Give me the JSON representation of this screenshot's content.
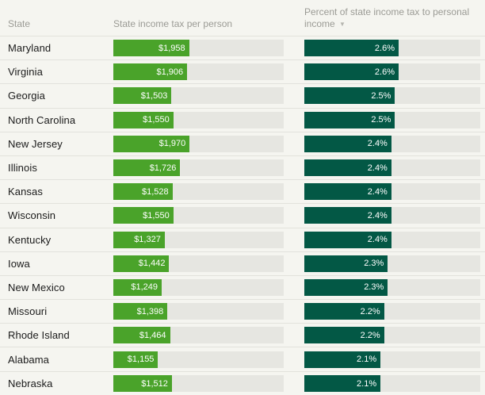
{
  "colors": {
    "background": "#f5f5f0",
    "track": "#e6e6e1",
    "row_divider": "#e2e2dc",
    "header_text": "#9b9b95",
    "state_text": "#1a1a1a",
    "bar_value_text": "#ffffff",
    "tax_bar": "#4aa32a",
    "pct_bar": "#035845"
  },
  "table": {
    "headers": {
      "state": "State",
      "tax": "State income tax per person",
      "pct": "Percent of state income tax to personal income",
      "sort_arrow": "▼",
      "sorted_by": "pct",
      "sort_direction": "descending"
    },
    "scales": {
      "tax_max": 4400,
      "pct_max": 4.85
    },
    "rows": [
      {
        "state": "Maryland",
        "tax_label": "$1,958",
        "tax_value": 1958,
        "pct_label": "2.6%",
        "pct_value": 2.6
      },
      {
        "state": "Virginia",
        "tax_label": "$1,906",
        "tax_value": 1906,
        "pct_label": "2.6%",
        "pct_value": 2.6
      },
      {
        "state": "Georgia",
        "tax_label": "$1,503",
        "tax_value": 1503,
        "pct_label": "2.5%",
        "pct_value": 2.5
      },
      {
        "state": "North Carolina",
        "tax_label": "$1,550",
        "tax_value": 1550,
        "pct_label": "2.5%",
        "pct_value": 2.5
      },
      {
        "state": "New Jersey",
        "tax_label": "$1,970",
        "tax_value": 1970,
        "pct_label": "2.4%",
        "pct_value": 2.4
      },
      {
        "state": "Illinois",
        "tax_label": "$1,726",
        "tax_value": 1726,
        "pct_label": "2.4%",
        "pct_value": 2.4
      },
      {
        "state": "Kansas",
        "tax_label": "$1,528",
        "tax_value": 1528,
        "pct_label": "2.4%",
        "pct_value": 2.4
      },
      {
        "state": "Wisconsin",
        "tax_label": "$1,550",
        "tax_value": 1550,
        "pct_label": "2.4%",
        "pct_value": 2.4
      },
      {
        "state": "Kentucky",
        "tax_label": "$1,327",
        "tax_value": 1327,
        "pct_label": "2.4%",
        "pct_value": 2.4
      },
      {
        "state": "Iowa",
        "tax_label": "$1,442",
        "tax_value": 1442,
        "pct_label": "2.3%",
        "pct_value": 2.3
      },
      {
        "state": "New Mexico",
        "tax_label": "$1,249",
        "tax_value": 1249,
        "pct_label": "2.3%",
        "pct_value": 2.3
      },
      {
        "state": "Missouri",
        "tax_label": "$1,398",
        "tax_value": 1398,
        "pct_label": "2.2%",
        "pct_value": 2.2
      },
      {
        "state": "Rhode Island",
        "tax_label": "$1,464",
        "tax_value": 1464,
        "pct_label": "2.2%",
        "pct_value": 2.2
      },
      {
        "state": "Alabama",
        "tax_label": "$1,155",
        "tax_value": 1155,
        "pct_label": "2.1%",
        "pct_value": 2.1
      },
      {
        "state": "Nebraska",
        "tax_label": "$1,512",
        "tax_value": 1512,
        "pct_label": "2.1%",
        "pct_value": 2.1
      }
    ]
  },
  "chart_data": {
    "type": "bar",
    "title": "",
    "categories": [
      "Maryland",
      "Virginia",
      "Georgia",
      "North Carolina",
      "New Jersey",
      "Illinois",
      "Kansas",
      "Wisconsin",
      "Kentucky",
      "Iowa",
      "New Mexico",
      "Missouri",
      "Rhode Island",
      "Alabama",
      "Nebraska"
    ],
    "series": [
      {
        "name": "State income tax per person",
        "unit": "USD",
        "values": [
          1958,
          1906,
          1503,
          1550,
          1970,
          1726,
          1528,
          1550,
          1327,
          1442,
          1249,
          1398,
          1464,
          1155,
          1512
        ],
        "axis_range": [
          0,
          4400
        ],
        "color": "#4aa32a"
      },
      {
        "name": "Percent of state income tax to personal income",
        "unit": "%",
        "values": [
          2.6,
          2.6,
          2.5,
          2.5,
          2.4,
          2.4,
          2.4,
          2.4,
          2.4,
          2.3,
          2.3,
          2.2,
          2.2,
          2.1,
          2.1
        ],
        "axis_range": [
          0,
          4.85
        ],
        "color": "#035845"
      }
    ],
    "xlabel": "",
    "ylabel": "",
    "legend_position": "none",
    "grid": false,
    "layout": "horizontal bars inside table rows, labels right-aligned inside bars, sorted descending by percent column"
  }
}
